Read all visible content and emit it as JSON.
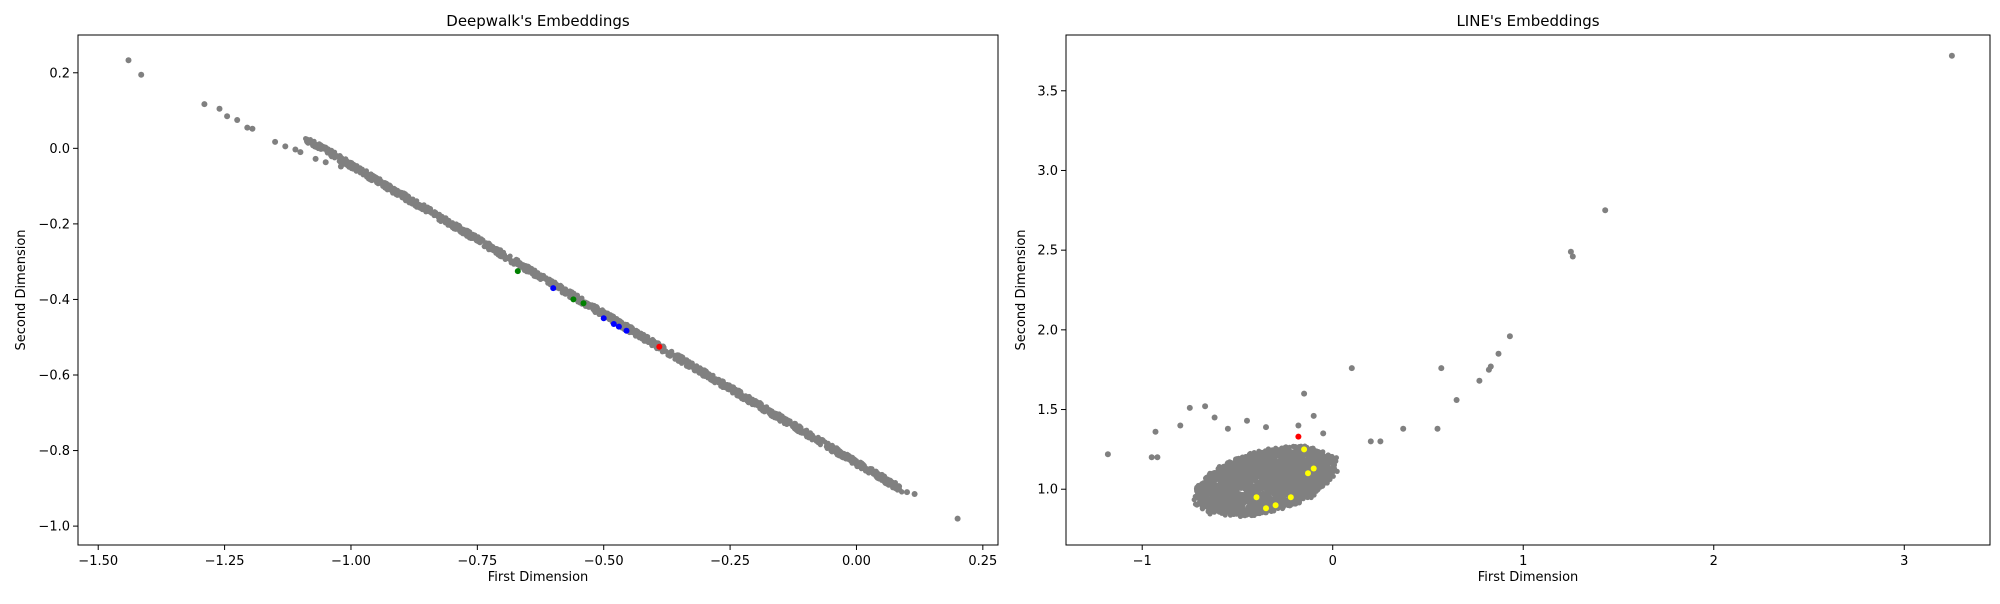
{
  "chart_data": [
    {
      "type": "scatter",
      "title": "Deepwalk's Embeddings",
      "xlabel": "First Dimension",
      "ylabel": "Second Dimension",
      "xlim": [
        -1.54,
        0.28
      ],
      "ylim": [
        -1.05,
        0.3
      ],
      "xticks": [
        -1.5,
        -1.25,
        -1.0,
        -0.75,
        -0.5,
        -0.25,
        0.0,
        0.25
      ],
      "xtick_labels": [
        "−1.50",
        "−1.25",
        "−1.00",
        "−0.75",
        "−0.50",
        "−0.25",
        "0.00",
        "0.25"
      ],
      "yticks": [
        -1.0,
        -0.8,
        -0.6,
        -0.4,
        -0.2,
        0.0,
        0.2
      ],
      "ytick_labels": [
        "−1.0",
        "−0.8",
        "−0.6",
        "−0.4",
        "−0.2",
        "0.0",
        "0.2"
      ],
      "grid": false,
      "band": {
        "x_start": -1.09,
        "x_end": 0.09,
        "slope": -0.7881,
        "intercept": -0.8325,
        "color": "#808080"
      },
      "series": [
        {
          "color": "#808080",
          "points": [
            [
              -1.44,
              0.233
            ],
            [
              -1.415,
              0.195
            ],
            [
              -1.29,
              0.117
            ],
            [
              -1.26,
              0.105
            ],
            [
              -1.245,
              0.085
            ],
            [
              -1.225,
              0.075
            ],
            [
              -1.205,
              0.055
            ],
            [
              -1.195,
              0.052
            ],
            [
              -1.15,
              0.017
            ],
            [
              -1.13,
              0.005
            ],
            [
              -1.11,
              -0.003
            ],
            [
              -1.1,
              -0.01
            ],
            [
              -1.07,
              -0.028
            ],
            [
              -1.05,
              -0.037
            ],
            [
              -1.02,
              -0.048
            ],
            [
              0.1,
              -0.91
            ],
            [
              0.115,
              -0.915
            ],
            [
              0.2,
              -0.98
            ]
          ]
        },
        {
          "color": "#008000",
          "points": [
            [
              -0.67,
              -0.325
            ],
            [
              -0.56,
              -0.4
            ],
            [
              -0.54,
              -0.41
            ]
          ]
        },
        {
          "color": "#0000ff",
          "points": [
            [
              -0.6,
              -0.37
            ],
            [
              -0.5,
              -0.45
            ],
            [
              -0.48,
              -0.465
            ],
            [
              -0.47,
              -0.472
            ],
            [
              -0.455,
              -0.483
            ]
          ]
        },
        {
          "color": "#ff0000",
          "points": [
            [
              -0.39,
              -0.525
            ]
          ]
        }
      ]
    },
    {
      "type": "scatter",
      "title": "LINE's Embeddings",
      "xlabel": "First Dimension",
      "ylabel": "Second Dimension",
      "xlim": [
        -1.4,
        3.45
      ],
      "ylim": [
        0.65,
        3.85
      ],
      "xticks": [
        -1,
        0,
        1,
        2,
        3
      ],
      "xtick_labels": [
        "−1",
        "0",
        "1",
        "2",
        "3"
      ],
      "yticks": [
        1.0,
        1.5,
        2.0,
        2.5,
        3.0,
        3.5
      ],
      "ytick_labels": [
        "1.0",
        "1.5",
        "2.0",
        "2.5",
        "3.0",
        "3.5"
      ],
      "grid": false,
      "cluster": {
        "cx": -0.35,
        "cy": 1.05,
        "rx": 0.36,
        "ry": 0.2,
        "color": "#808080"
      },
      "series": [
        {
          "color": "#808080",
          "points": [
            [
              -1.18,
              1.22
            ],
            [
              -0.95,
              1.2
            ],
            [
              -0.92,
              1.2
            ],
            [
              -0.93,
              1.36
            ],
            [
              -0.8,
              1.4
            ],
            [
              -0.75,
              1.51
            ],
            [
              -0.67,
              1.52
            ],
            [
              -0.62,
              1.45
            ],
            [
              -0.55,
              1.38
            ],
            [
              -0.45,
              1.43
            ],
            [
              -0.35,
              1.39
            ],
            [
              -0.18,
              1.4
            ],
            [
              -0.1,
              1.46
            ],
            [
              -0.05,
              1.35
            ],
            [
              -0.15,
              1.6
            ],
            [
              0.1,
              1.76
            ],
            [
              0.2,
              1.3
            ],
            [
              0.25,
              1.3
            ],
            [
              0.37,
              1.38
            ],
            [
              0.55,
              1.38
            ],
            [
              0.57,
              1.76
            ],
            [
              0.65,
              1.56
            ],
            [
              0.77,
              1.68
            ],
            [
              0.82,
              1.75
            ],
            [
              0.83,
              1.77
            ],
            [
              0.87,
              1.85
            ],
            [
              0.93,
              1.96
            ],
            [
              1.25,
              2.49
            ],
            [
              1.26,
              2.46
            ],
            [
              1.43,
              2.75
            ],
            [
              3.25,
              3.72
            ]
          ]
        },
        {
          "color": "#ffff00",
          "points": [
            [
              -0.3,
              0.9
            ],
            [
              -0.35,
              0.88
            ],
            [
              -0.22,
              0.95
            ],
            [
              -0.1,
              1.13
            ],
            [
              -0.13,
              1.1
            ],
            [
              -0.15,
              1.25
            ],
            [
              -0.4,
              0.95
            ]
          ]
        },
        {
          "color": "#ff0000",
          "points": [
            [
              -0.18,
              1.33
            ]
          ]
        }
      ]
    }
  ]
}
